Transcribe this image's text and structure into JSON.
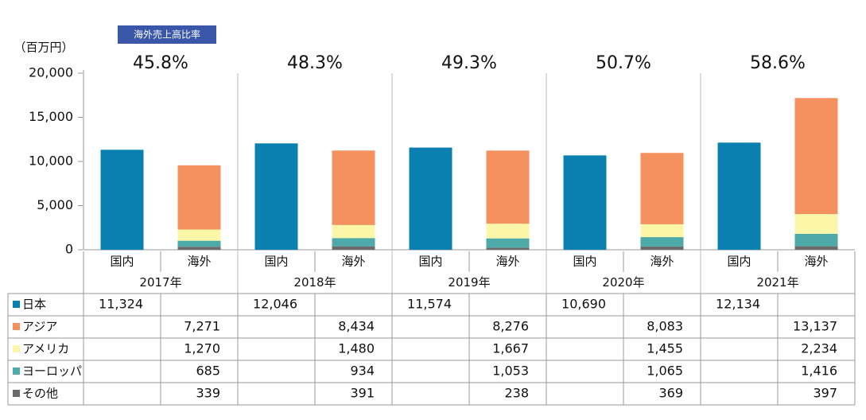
{
  "chart_data": {
    "type": "stacked_bar",
    "y_label": "（百万円）",
    "ratio_title": "海外売上高比率",
    "ratios": [
      45.8,
      48.3,
      49.3,
      50.7,
      58.6
    ],
    "ratio_labels": [
      "45.8%",
      "48.3%",
      "49.3%",
      "50.7%",
      "58.6%"
    ],
    "groups": [
      "2017年",
      "2018年",
      "2019年",
      "2020年",
      "2021年"
    ],
    "categories": [
      "国内",
      "海外",
      "国内",
      "海外",
      "国内",
      "海外",
      "国内",
      "海外",
      "国内",
      "海外"
    ],
    "series": [
      {
        "name": "日本",
        "color": "#0a80b1",
        "values": [
          11324,
          null,
          12046,
          null,
          11574,
          null,
          10690,
          null,
          12134,
          null
        ],
        "value_labels": [
          "11,324",
          null,
          "12,046",
          null,
          "11,574",
          null,
          "10,690",
          null,
          "12,134",
          null
        ]
      },
      {
        "name": "アジア",
        "color": "#f5915f",
        "values": [
          null,
          7271,
          null,
          8434,
          null,
          8276,
          null,
          8083,
          null,
          13137
        ],
        "value_labels": [
          null,
          "7,271",
          null,
          "8,434",
          null,
          "8,276",
          null,
          "8,083",
          null,
          "13,137"
        ]
      },
      {
        "name": "アメリカ",
        "color": "#fbf6a8",
        "values": [
          null,
          1270,
          null,
          1480,
          null,
          1667,
          null,
          1455,
          null,
          2234
        ],
        "value_labels": [
          null,
          "1,270",
          null,
          "1,480",
          null,
          "1,667",
          null,
          "1,455",
          null,
          "2,234"
        ]
      },
      {
        "name": "ヨーロッパ",
        "color": "#4eaaa8",
        "values": [
          null,
          685,
          null,
          934,
          null,
          1053,
          null,
          1065,
          null,
          1416
        ],
        "value_labels": [
          null,
          "685",
          null,
          "934",
          null,
          "1,053",
          null,
          "1,065",
          null,
          "1,416"
        ]
      },
      {
        "name": "その他",
        "color": "#6b6b6b",
        "values": [
          null,
          339,
          null,
          391,
          null,
          238,
          null,
          369,
          null,
          397
        ],
        "value_labels": [
          null,
          "339",
          null,
          "391",
          null,
          "238",
          null,
          "369",
          null,
          "397"
        ]
      }
    ],
    "ylim": [
      0,
      20000
    ],
    "yticks": [
      0,
      {
        "value": 5000,
        "label": "5,000"
      },
      {
        "value": 10000,
        "label": "10,000"
      },
      {
        "value": 15000,
        "label": "15,000"
      },
      {
        "value": 20000,
        "label": "20,000"
      }
    ]
  }
}
